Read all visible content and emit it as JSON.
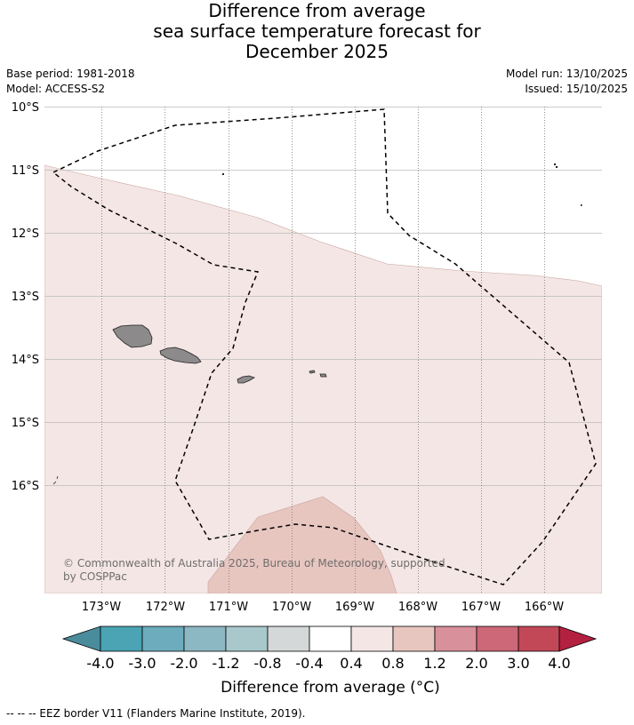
{
  "title": {
    "line1": "Difference from average",
    "line2": "sea surface temperature forecast for",
    "line3": "December 2025"
  },
  "meta": {
    "base_period": "Base period: 1981-2018",
    "model": "Model: ACCESS-S2",
    "model_run": "Model run: 13/10/2025",
    "issued": "Issued: 15/10/2025"
  },
  "map": {
    "lat_labels": [
      "10°S",
      "11°S",
      "12°S",
      "13°S",
      "14°S",
      "15°S",
      "16°S"
    ],
    "lon_labels": [
      "173°W",
      "172°W",
      "171°W",
      "170°W",
      "169°W",
      "168°W",
      "167°W",
      "166°W"
    ],
    "copyright_line1": "© Commonwealth of Australia 2025, Bureau of Meteorology, supported",
    "copyright_line2": "by COSPPac",
    "anomaly_band_0_4_to_0_8_color": "#f4e6e4",
    "anomaly_band_0_8_to_1_2_color": "#e8c6c0",
    "land_color": "#8c8a8a"
  },
  "colorbar": {
    "tick_labels": [
      "-4.0",
      "-3.0",
      "-2.0",
      "-1.2",
      "-0.8",
      "-0.4",
      "0.4",
      "0.8",
      "1.2",
      "2.0",
      "3.0",
      "4.0"
    ],
    "colors": [
      "#4a8c9c",
      "#4aa4b4",
      "#6cacbc",
      "#8cb8c4",
      "#a8c8cc",
      "#d4d8d8",
      "#ffffff",
      "#f4e6e4",
      "#e8c6c0",
      "#d8909a",
      "#cc6878",
      "#c24858",
      "#b42040"
    ],
    "title": "Difference from average (°C)"
  },
  "footnote": "--  --  -- EEZ border V11 (Flanders Marine Institute, 2019)."
}
